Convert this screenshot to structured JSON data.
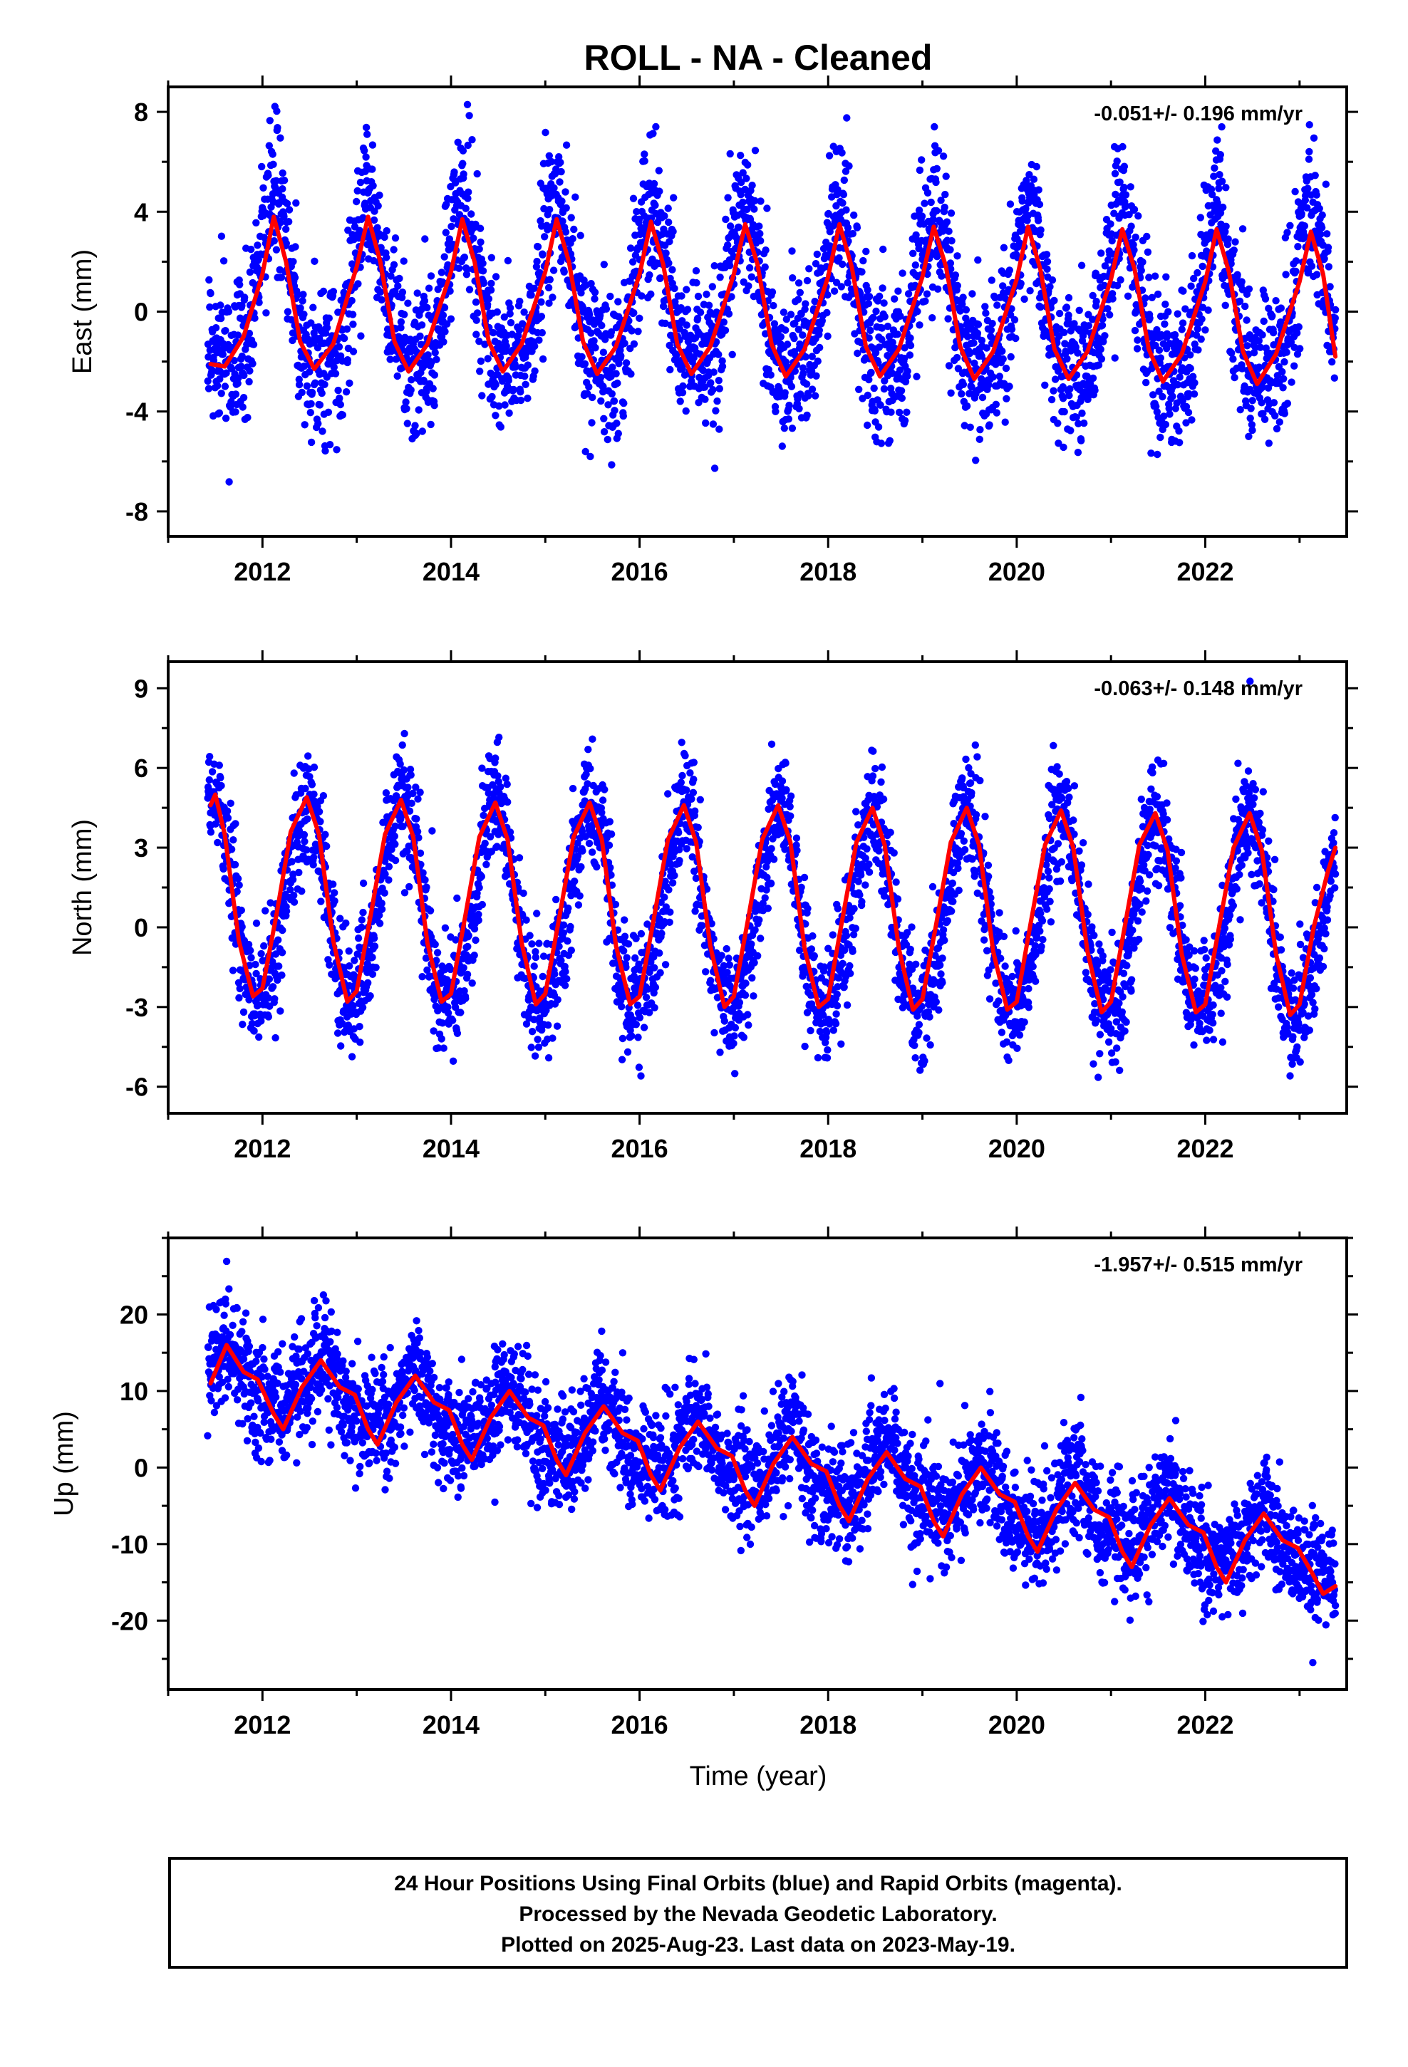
{
  "title": "ROLL  - NA - Cleaned",
  "xlabel": "Time (year)",
  "footer": {
    "line1": "24 Hour Positions Using Final Orbits (blue) and Rapid Orbits (magenta).",
    "line2": "Processed by the Nevada Geodetic Laboratory.",
    "line3": "Plotted on 2025-Aug-23. Last data on 2023-May-19."
  },
  "colors": {
    "points": "#0000ff",
    "fit": "#ff0000",
    "frame": "#000000"
  },
  "chart_data": [
    {
      "type": "scatter",
      "component": "east",
      "ylabel": "East (mm)",
      "rate": "-0.051+/- 0.196 mm/yr",
      "xlim": [
        2011.0,
        2023.5
      ],
      "ylim": [
        -9,
        9
      ],
      "xticks": [
        "2012",
        "2014",
        "2016",
        "2018",
        "2020",
        "2022"
      ],
      "yticks": [
        "-8",
        "-4",
        "0",
        "4",
        "8"
      ],
      "x_range": [
        2011.42,
        2023.38
      ],
      "series": [
        {
          "kind": "daily positions",
          "color": "#0000ff",
          "model": {
            "offset": 0.55,
            "trend_mm_per_yr": -0.051,
            "annual_amp": 3.1,
            "annual_peak": 0.12,
            "semiannual_amp": 0.9,
            "semiannual_peak": 0.12,
            "scatter_sd": 1.5
          }
        },
        {
          "kind": "fit",
          "color": "#ff0000",
          "points": [
            [
              2011.45,
              -2.1
            ],
            [
              2011.6,
              -2.2
            ],
            [
              2011.8,
              -1.0
            ],
            [
              2012.0,
              1.5
            ],
            [
              2012.12,
              3.8
            ],
            [
              2012.25,
              2.0
            ],
            [
              2012.4,
              -1.2
            ],
            [
              2012.55,
              -2.3
            ],
            [
              2012.75,
              -1.3
            ],
            [
              2013.0,
              1.8
            ],
            [
              2013.12,
              3.8
            ],
            [
              2013.25,
              2.0
            ],
            [
              2013.4,
              -1.2
            ],
            [
              2013.55,
              -2.4
            ],
            [
              2013.75,
              -1.3
            ],
            [
              2014.0,
              1.6
            ],
            [
              2014.12,
              3.7
            ],
            [
              2014.25,
              2.0
            ],
            [
              2014.4,
              -1.2
            ],
            [
              2014.55,
              -2.4
            ],
            [
              2014.75,
              -1.3
            ],
            [
              2015.0,
              1.6
            ],
            [
              2015.12,
              3.7
            ],
            [
              2015.25,
              2.0
            ],
            [
              2015.4,
              -1.2
            ],
            [
              2015.55,
              -2.5
            ],
            [
              2015.75,
              -1.4
            ],
            [
              2016.0,
              1.5
            ],
            [
              2016.12,
              3.6
            ],
            [
              2016.25,
              1.9
            ],
            [
              2016.4,
              -1.3
            ],
            [
              2016.55,
              -2.5
            ],
            [
              2016.75,
              -1.4
            ],
            [
              2017.0,
              1.5
            ],
            [
              2017.12,
              3.5
            ],
            [
              2017.25,
              1.9
            ],
            [
              2017.4,
              -1.3
            ],
            [
              2017.55,
              -2.6
            ],
            [
              2017.75,
              -1.5
            ],
            [
              2018.0,
              1.4
            ],
            [
              2018.12,
              3.5
            ],
            [
              2018.25,
              1.8
            ],
            [
              2018.4,
              -1.4
            ],
            [
              2018.55,
              -2.6
            ],
            [
              2018.75,
              -1.5
            ],
            [
              2019.0,
              1.4
            ],
            [
              2019.12,
              3.4
            ],
            [
              2019.25,
              1.8
            ],
            [
              2019.4,
              -1.4
            ],
            [
              2019.55,
              -2.7
            ],
            [
              2019.75,
              -1.6
            ],
            [
              2020.0,
              1.3
            ],
            [
              2020.12,
              3.4
            ],
            [
              2020.25,
              1.7
            ],
            [
              2020.4,
              -1.5
            ],
            [
              2020.55,
              -2.7
            ],
            [
              2020.75,
              -1.6
            ],
            [
              2021.0,
              1.3
            ],
            [
              2021.12,
              3.3
            ],
            [
              2021.25,
              1.7
            ],
            [
              2021.4,
              -1.5
            ],
            [
              2021.55,
              -2.8
            ],
            [
              2021.75,
              -1.7
            ],
            [
              2022.0,
              1.2
            ],
            [
              2022.12,
              3.3
            ],
            [
              2022.25,
              1.6
            ],
            [
              2022.4,
              -1.6
            ],
            [
              2022.55,
              -2.9
            ],
            [
              2022.75,
              -1.7
            ],
            [
              2023.0,
              1.2
            ],
            [
              2023.12,
              3.2
            ],
            [
              2023.25,
              1.5
            ],
            [
              2023.38,
              -1.8
            ]
          ]
        }
      ]
    },
    {
      "type": "scatter",
      "component": "north",
      "ylabel": "North (mm)",
      "rate": "-0.063+/- 0.148 mm/yr",
      "xlim": [
        2011.0,
        2023.5
      ],
      "ylim": [
        -7,
        10
      ],
      "xticks": [
        "2012",
        "2014",
        "2016",
        "2018",
        "2020",
        "2022"
      ],
      "yticks": [
        "-6",
        "-3",
        "0",
        "3",
        "6",
        "9"
      ],
      "x_range": [
        2011.42,
        2023.38
      ],
      "series": [
        {
          "kind": "daily positions",
          "color": "#0000ff",
          "model": {
            "offset": 0.85,
            "trend_mm_per_yr": -0.063,
            "annual_amp": 3.7,
            "annual_peak": 0.47,
            "semiannual_amp": 0.4,
            "semiannual_peak": 0.0,
            "scatter_sd": 1.1
          }
        },
        {
          "kind": "fit",
          "color": "#ff0000",
          "points": [
            [
              2011.45,
              4.6
            ],
            [
              2011.5,
              5.0
            ],
            [
              2011.6,
              3.5
            ],
            [
              2011.75,
              -0.5
            ],
            [
              2011.9,
              -2.6
            ],
            [
              2012.0,
              -2.3
            ],
            [
              2012.15,
              0.5
            ],
            [
              2012.3,
              3.6
            ],
            [
              2012.47,
              4.9
            ],
            [
              2012.6,
              3.5
            ],
            [
              2012.75,
              -0.5
            ],
            [
              2012.9,
              -2.8
            ],
            [
              2013.0,
              -2.4
            ],
            [
              2013.15,
              0.5
            ],
            [
              2013.3,
              3.5
            ],
            [
              2013.47,
              4.8
            ],
            [
              2013.6,
              3.4
            ],
            [
              2013.75,
              -0.6
            ],
            [
              2013.9,
              -2.8
            ],
            [
              2014.0,
              -2.5
            ],
            [
              2014.15,
              0.4
            ],
            [
              2014.3,
              3.4
            ],
            [
              2014.47,
              4.7
            ],
            [
              2014.6,
              3.3
            ],
            [
              2014.75,
              -0.6
            ],
            [
              2014.9,
              -2.9
            ],
            [
              2015.0,
              -2.5
            ],
            [
              2015.15,
              0.4
            ],
            [
              2015.3,
              3.4
            ],
            [
              2015.47,
              4.7
            ],
            [
              2015.6,
              3.3
            ],
            [
              2015.75,
              -0.7
            ],
            [
              2015.9,
              -2.9
            ],
            [
              2016.0,
              -2.6
            ],
            [
              2016.15,
              0.3
            ],
            [
              2016.3,
              3.3
            ],
            [
              2016.47,
              4.6
            ],
            [
              2016.6,
              3.2
            ],
            [
              2016.75,
              -0.7
            ],
            [
              2016.9,
              -3.0
            ],
            [
              2017.0,
              -2.6
            ],
            [
              2017.15,
              0.3
            ],
            [
              2017.3,
              3.3
            ],
            [
              2017.47,
              4.6
            ],
            [
              2017.6,
              3.2
            ],
            [
              2017.75,
              -0.8
            ],
            [
              2017.9,
              -3.0
            ],
            [
              2018.0,
              -2.7
            ],
            [
              2018.15,
              0.3
            ],
            [
              2018.3,
              3.2
            ],
            [
              2018.47,
              4.5
            ],
            [
              2018.6,
              3.1
            ],
            [
              2018.75,
              -0.8
            ],
            [
              2018.9,
              -3.1
            ],
            [
              2019.0,
              -2.7
            ],
            [
              2019.15,
              0.2
            ],
            [
              2019.3,
              3.2
            ],
            [
              2019.47,
              4.5
            ],
            [
              2019.6,
              3.1
            ],
            [
              2019.75,
              -0.9
            ],
            [
              2019.9,
              -3.1
            ],
            [
              2020.0,
              -2.8
            ],
            [
              2020.15,
              0.2
            ],
            [
              2020.3,
              3.1
            ],
            [
              2020.47,
              4.4
            ],
            [
              2020.6,
              3.0
            ],
            [
              2020.75,
              -0.9
            ],
            [
              2020.9,
              -3.2
            ],
            [
              2021.0,
              -2.8
            ],
            [
              2021.15,
              0.1
            ],
            [
              2021.3,
              3.1
            ],
            [
              2021.47,
              4.3
            ],
            [
              2021.6,
              2.9
            ],
            [
              2021.75,
              -1.0
            ],
            [
              2021.9,
              -3.2
            ],
            [
              2022.0,
              -2.9
            ],
            [
              2022.15,
              0.1
            ],
            [
              2022.3,
              3.0
            ],
            [
              2022.47,
              4.3
            ],
            [
              2022.6,
              2.9
            ],
            [
              2022.75,
              -1.0
            ],
            [
              2022.9,
              -3.3
            ],
            [
              2023.0,
              -2.9
            ],
            [
              2023.15,
              0.0
            ],
            [
              2023.3,
              2.1
            ],
            [
              2023.38,
              3.0
            ]
          ]
        }
      ]
    },
    {
      "type": "scatter",
      "component": "up",
      "ylabel": "Up (mm)",
      "rate": "-1.957+/- 0.515 mm/yr",
      "xlim": [
        2011.0,
        2023.5
      ],
      "ylim": [
        -29,
        30
      ],
      "xticks": [
        "2012",
        "2014",
        "2016",
        "2018",
        "2020",
        "2022"
      ],
      "yticks": [
        "-20",
        "-10",
        "0",
        "10",
        "20"
      ],
      "x_range": [
        2011.42,
        2023.38
      ],
      "series": [
        {
          "kind": "daily positions",
          "color": "#0000ff",
          "model": {
            "offset": 12.2,
            "trend_mm_per_yr": -1.957,
            "annual_amp": 3.6,
            "annual_peak": 0.62,
            "semiannual_amp": 1.2,
            "semiannual_peak": 0.12,
            "scatter_sd": 3.6
          }
        },
        {
          "kind": "fit",
          "color": "#ff0000",
          "points": [
            [
              2011.45,
              11.0
            ],
            [
              2011.62,
              16.0
            ],
            [
              2011.8,
              12.5
            ],
            [
              2011.95,
              11.5
            ],
            [
              2012.12,
              7.0
            ],
            [
              2012.22,
              5.0
            ],
            [
              2012.42,
              10.5
            ],
            [
              2012.62,
              14.0
            ],
            [
              2012.82,
              10.5
            ],
            [
              2012.98,
              9.5
            ],
            [
              2013.12,
              5.0
            ],
            [
              2013.22,
              3.0
            ],
            [
              2013.42,
              8.5
            ],
            [
              2013.62,
              12.0
            ],
            [
              2013.82,
              8.5
            ],
            [
              2013.98,
              7.5
            ],
            [
              2014.12,
              3.0
            ],
            [
              2014.22,
              1.0
            ],
            [
              2014.42,
              6.5
            ],
            [
              2014.62,
              10.0
            ],
            [
              2014.82,
              6.5
            ],
            [
              2014.98,
              5.5
            ],
            [
              2015.12,
              1.0
            ],
            [
              2015.22,
              -1.0
            ],
            [
              2015.42,
              4.5
            ],
            [
              2015.62,
              8.0
            ],
            [
              2015.82,
              4.5
            ],
            [
              2015.98,
              3.5
            ],
            [
              2016.12,
              -1.0
            ],
            [
              2016.22,
              -3.0
            ],
            [
              2016.42,
              2.5
            ],
            [
              2016.62,
              6.0
            ],
            [
              2016.82,
              2.5
            ],
            [
              2016.98,
              1.5
            ],
            [
              2017.12,
              -3.0
            ],
            [
              2017.22,
              -5.0
            ],
            [
              2017.42,
              0.5
            ],
            [
              2017.62,
              4.0
            ],
            [
              2017.82,
              0.5
            ],
            [
              2017.98,
              -0.5
            ],
            [
              2018.12,
              -5.0
            ],
            [
              2018.22,
              -7.0
            ],
            [
              2018.42,
              -1.5
            ],
            [
              2018.62,
              2.0
            ],
            [
              2018.82,
              -1.5
            ],
            [
              2018.98,
              -2.5
            ],
            [
              2019.12,
              -7.0
            ],
            [
              2019.22,
              -9.0
            ],
            [
              2019.42,
              -3.5
            ],
            [
              2019.62,
              0.0
            ],
            [
              2019.82,
              -3.5
            ],
            [
              2019.98,
              -4.5
            ],
            [
              2020.12,
              -9.0
            ],
            [
              2020.22,
              -11.0
            ],
            [
              2020.42,
              -5.5
            ],
            [
              2020.62,
              -2.0
            ],
            [
              2020.82,
              -5.5
            ],
            [
              2020.98,
              -6.5
            ],
            [
              2021.12,
              -11.0
            ],
            [
              2021.22,
              -13.0
            ],
            [
              2021.42,
              -7.5
            ],
            [
              2021.62,
              -4.0
            ],
            [
              2021.82,
              -7.5
            ],
            [
              2021.98,
              -8.5
            ],
            [
              2022.12,
              -13.0
            ],
            [
              2022.22,
              -15.0
            ],
            [
              2022.42,
              -9.5
            ],
            [
              2022.62,
              -6.0
            ],
            [
              2022.82,
              -9.5
            ],
            [
              2022.98,
              -10.5
            ],
            [
              2023.12,
              -13.5
            ],
            [
              2023.25,
              -16.5
            ],
            [
              2023.38,
              -15.5
            ]
          ]
        }
      ]
    }
  ]
}
